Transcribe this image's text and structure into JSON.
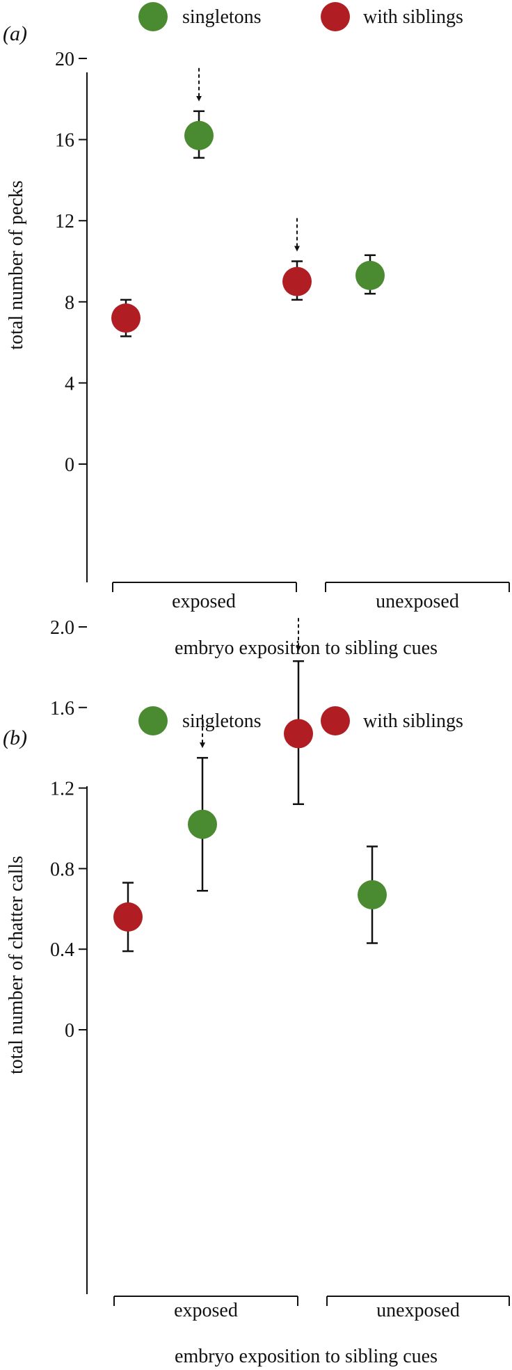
{
  "chart_data": [
    {
      "type": "scatter",
      "panel_label": "(a)",
      "legend": [
        {
          "name": "singletons",
          "color": "#4a8a30"
        },
        {
          "name": "with siblings",
          "color": "#b01e23"
        }
      ],
      "ylabel": "total number of pecks",
      "xlabel": "embryo exposition to sibling cues",
      "ylim": [
        0,
        20
      ],
      "yticks": [
        "0",
        "4",
        "8",
        "12",
        "16",
        "20"
      ],
      "groups": [
        "exposed",
        "unexposed"
      ],
      "points": [
        {
          "group": "exposed",
          "series": "with siblings",
          "y": 7.2,
          "err_low": 6.3,
          "err_high": 8.1,
          "arrow": false
        },
        {
          "group": "exposed",
          "series": "singletons",
          "y": 16.2,
          "err_low": 15.1,
          "err_high": 17.4,
          "arrow": true
        },
        {
          "group": "unexposed",
          "series": "with siblings",
          "y": 9.0,
          "err_low": 8.1,
          "err_high": 10.0,
          "arrow": true
        },
        {
          "group": "unexposed",
          "series": "singletons",
          "y": 9.3,
          "err_low": 8.4,
          "err_high": 10.3,
          "arrow": false
        }
      ]
    },
    {
      "type": "scatter",
      "panel_label": "(b)",
      "legend": [
        {
          "name": "singletons",
          "color": "#4a8a30"
        },
        {
          "name": "with siblings",
          "color": "#b01e23"
        }
      ],
      "ylabel": "total number of chatter calls",
      "xlabel": "embryo exposition to sibling cues",
      "ylim": [
        0,
        2.0
      ],
      "yticks": [
        "0",
        "0.4",
        "0.8",
        "1.2",
        "1.6",
        "2.0"
      ],
      "groups": [
        "exposed",
        "unexposed"
      ],
      "points": [
        {
          "group": "exposed",
          "series": "with siblings",
          "y": 0.56,
          "err_low": 0.39,
          "err_high": 0.73,
          "arrow": false
        },
        {
          "group": "exposed",
          "series": "singletons",
          "y": 1.02,
          "err_low": 0.69,
          "err_high": 1.35,
          "arrow": true
        },
        {
          "group": "unexposed",
          "series": "with siblings",
          "y": 1.47,
          "err_low": 1.12,
          "err_high": 1.83,
          "arrow": true
        },
        {
          "group": "unexposed",
          "series": "singletons",
          "y": 0.67,
          "err_low": 0.43,
          "err_high": 0.91,
          "arrow": false
        }
      ]
    }
  ]
}
